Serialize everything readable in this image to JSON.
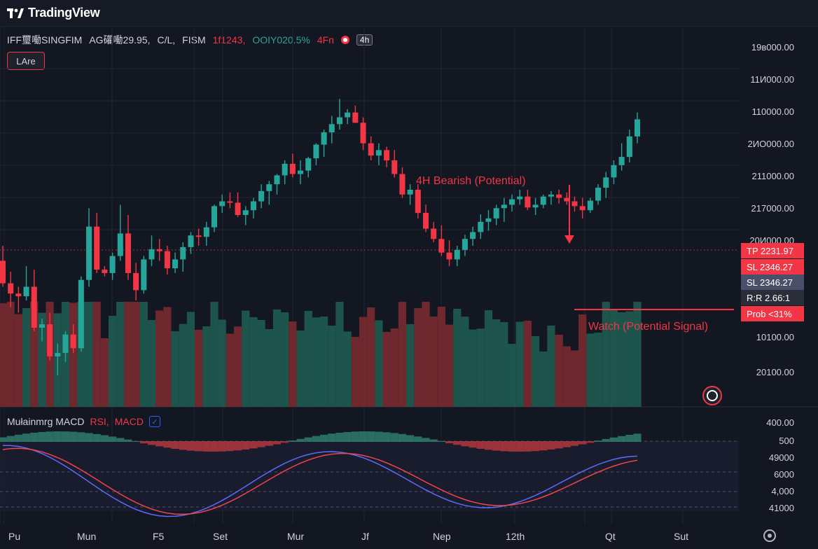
{
  "app": {
    "name": "TradingView"
  },
  "legend": {
    "symbol": "IFF璽㗢SINGFIM",
    "ohlc": "AG礶㗢29.95,",
    "cl": "C/L,",
    "fism": "FISM",
    "value_red": "1f1243,",
    "change": "OOIY020.5%",
    "tf_red": "4Fn",
    "tf_box": "4h"
  },
  "badge": {
    "label": "LAre"
  },
  "price_axis": {
    "labels": [
      "19в000.00",
      "11И000.00",
      "110000.00",
      "2ИО000.00",
      "211000.00",
      "217000.00",
      "20И000.00",
      "10100.00",
      "20100.00",
      "400.00",
      "500",
      "49000",
      "6000",
      "4,000",
      "41000"
    ]
  },
  "tags": {
    "tp": {
      "label": "TP 2231.97",
      "color": "#f23645"
    },
    "sl1": {
      "label": "SL 2346.27",
      "color": "#f23645"
    },
    "sl2": {
      "label": "SL 2346.27",
      "color": "#4a4f6a"
    },
    "rr": {
      "label": "R:R 2.66:1",
      "color": "#2a2e39"
    },
    "prob": {
      "label": "Prob <31%",
      "color": "#f23645"
    }
  },
  "annotations": {
    "bearish": "4H Bearish (Potential)",
    "watch": "Watch (Potential Signal)"
  },
  "indicator": {
    "title_prefix": "Mułainmrg MACD",
    "rsi": "RSI,",
    "macd": "MACD",
    "check": "✓"
  },
  "time_axis": {
    "labels": [
      "Pu",
      "Mun",
      "F5",
      "Set",
      "Mur",
      "Jf",
      "Nep",
      "12th",
      "Qt",
      "Sut"
    ]
  },
  "colors": {
    "up": "#26a69a",
    "down": "#f23645",
    "bg": "#131722"
  },
  "icons": {
    "logo": "tradingview-logo-icon",
    "settings": "settings-gear-icon",
    "alert": "alert-clock-icon"
  },
  "chart_data": {
    "type": "candlestick",
    "candles": [
      [
        248,
        270,
        210,
        215
      ],
      [
        215,
        232,
        180,
        200
      ],
      [
        200,
        210,
        172,
        196
      ],
      [
        196,
        240,
        190,
        210
      ],
      [
        210,
        235,
        145,
        150
      ],
      [
        150,
        163,
        130,
        155
      ],
      [
        155,
        172,
        102,
        108
      ],
      [
        108,
        127,
        80,
        113
      ],
      [
        113,
        145,
        100,
        140
      ],
      [
        140,
        155,
        113,
        120
      ],
      [
        120,
        225,
        115,
        220
      ],
      [
        220,
        325,
        210,
        298
      ],
      [
        298,
        318,
        230,
        235
      ],
      [
        235,
        240,
        225,
        230
      ],
      [
        230,
        260,
        220,
        255
      ],
      [
        255,
        330,
        248,
        288
      ],
      [
        288,
        315,
        220,
        230
      ],
      [
        230,
        245,
        190,
        205
      ],
      [
        205,
        255,
        200,
        250
      ],
      [
        250,
        285,
        240,
        265
      ],
      [
        265,
        280,
        248,
        262
      ],
      [
        262,
        270,
        228,
        237
      ],
      [
        237,
        260,
        230,
        250
      ],
      [
        250,
        275,
        232,
        268
      ],
      [
        268,
        290,
        258,
        285
      ],
      [
        285,
        295,
        270,
        283
      ],
      [
        283,
        305,
        270,
        297
      ],
      [
        297,
        330,
        290,
        328
      ],
      [
        328,
        345,
        318,
        335
      ],
      [
        335,
        348,
        325,
        333
      ],
      [
        333,
        348,
        312,
        315
      ],
      [
        315,
        328,
        300,
        322
      ],
      [
        322,
        340,
        310,
        335
      ],
      [
        335,
        360,
        325,
        350
      ],
      [
        350,
        365,
        330,
        360
      ],
      [
        360,
        375,
        345,
        373
      ],
      [
        373,
        395,
        360,
        390
      ],
      [
        390,
        405,
        370,
        375
      ],
      [
        375,
        395,
        360,
        380
      ],
      [
        380,
        400,
        370,
        398
      ],
      [
        398,
        420,
        388,
        418
      ],
      [
        418,
        440,
        400,
        436
      ],
      [
        436,
        460,
        420,
        448
      ],
      [
        448,
        485,
        440,
        458
      ],
      [
        458,
        470,
        448,
        465
      ],
      [
        465,
        475,
        450,
        450
      ],
      [
        450,
        458,
        410,
        420
      ],
      [
        420,
        430,
        395,
        402
      ],
      [
        402,
        420,
        388,
        410
      ],
      [
        410,
        415,
        385,
        395
      ],
      [
        395,
        410,
        370,
        375
      ],
      [
        375,
        385,
        340,
        345
      ],
      [
        345,
        360,
        330,
        352
      ],
      [
        352,
        360,
        310,
        318
      ],
      [
        318,
        330,
        290,
        295
      ],
      [
        295,
        305,
        275,
        280
      ],
      [
        280,
        300,
        255,
        260
      ],
      [
        260,
        278,
        240,
        250
      ],
      [
        250,
        270,
        240,
        264
      ],
      [
        264,
        286,
        255,
        280
      ],
      [
        280,
        298,
        270,
        290
      ],
      [
        290,
        316,
        280,
        305
      ],
      [
        305,
        322,
        292,
        310
      ],
      [
        310,
        330,
        300,
        325
      ],
      [
        325,
        340,
        305,
        330
      ],
      [
        330,
        345,
        320,
        338
      ],
      [
        338,
        352,
        330,
        342
      ],
      [
        342,
        352,
        322,
        326
      ],
      [
        326,
        340,
        315,
        330
      ],
      [
        330,
        345,
        325,
        342
      ],
      [
        342,
        350,
        330,
        345
      ],
      [
        345,
        352,
        332,
        340
      ],
      [
        340,
        348,
        330,
        335
      ],
      [
        335,
        342,
        320,
        328
      ],
      [
        328,
        340,
        310,
        322
      ],
      [
        322,
        340,
        318,
        336
      ],
      [
        336,
        360,
        330,
        355
      ],
      [
        355,
        378,
        340,
        370
      ],
      [
        370,
        395,
        360,
        388
      ],
      [
        388,
        420,
        380,
        400
      ],
      [
        400,
        440,
        392,
        430
      ],
      [
        430,
        465,
        420,
        455
      ]
    ]
  }
}
